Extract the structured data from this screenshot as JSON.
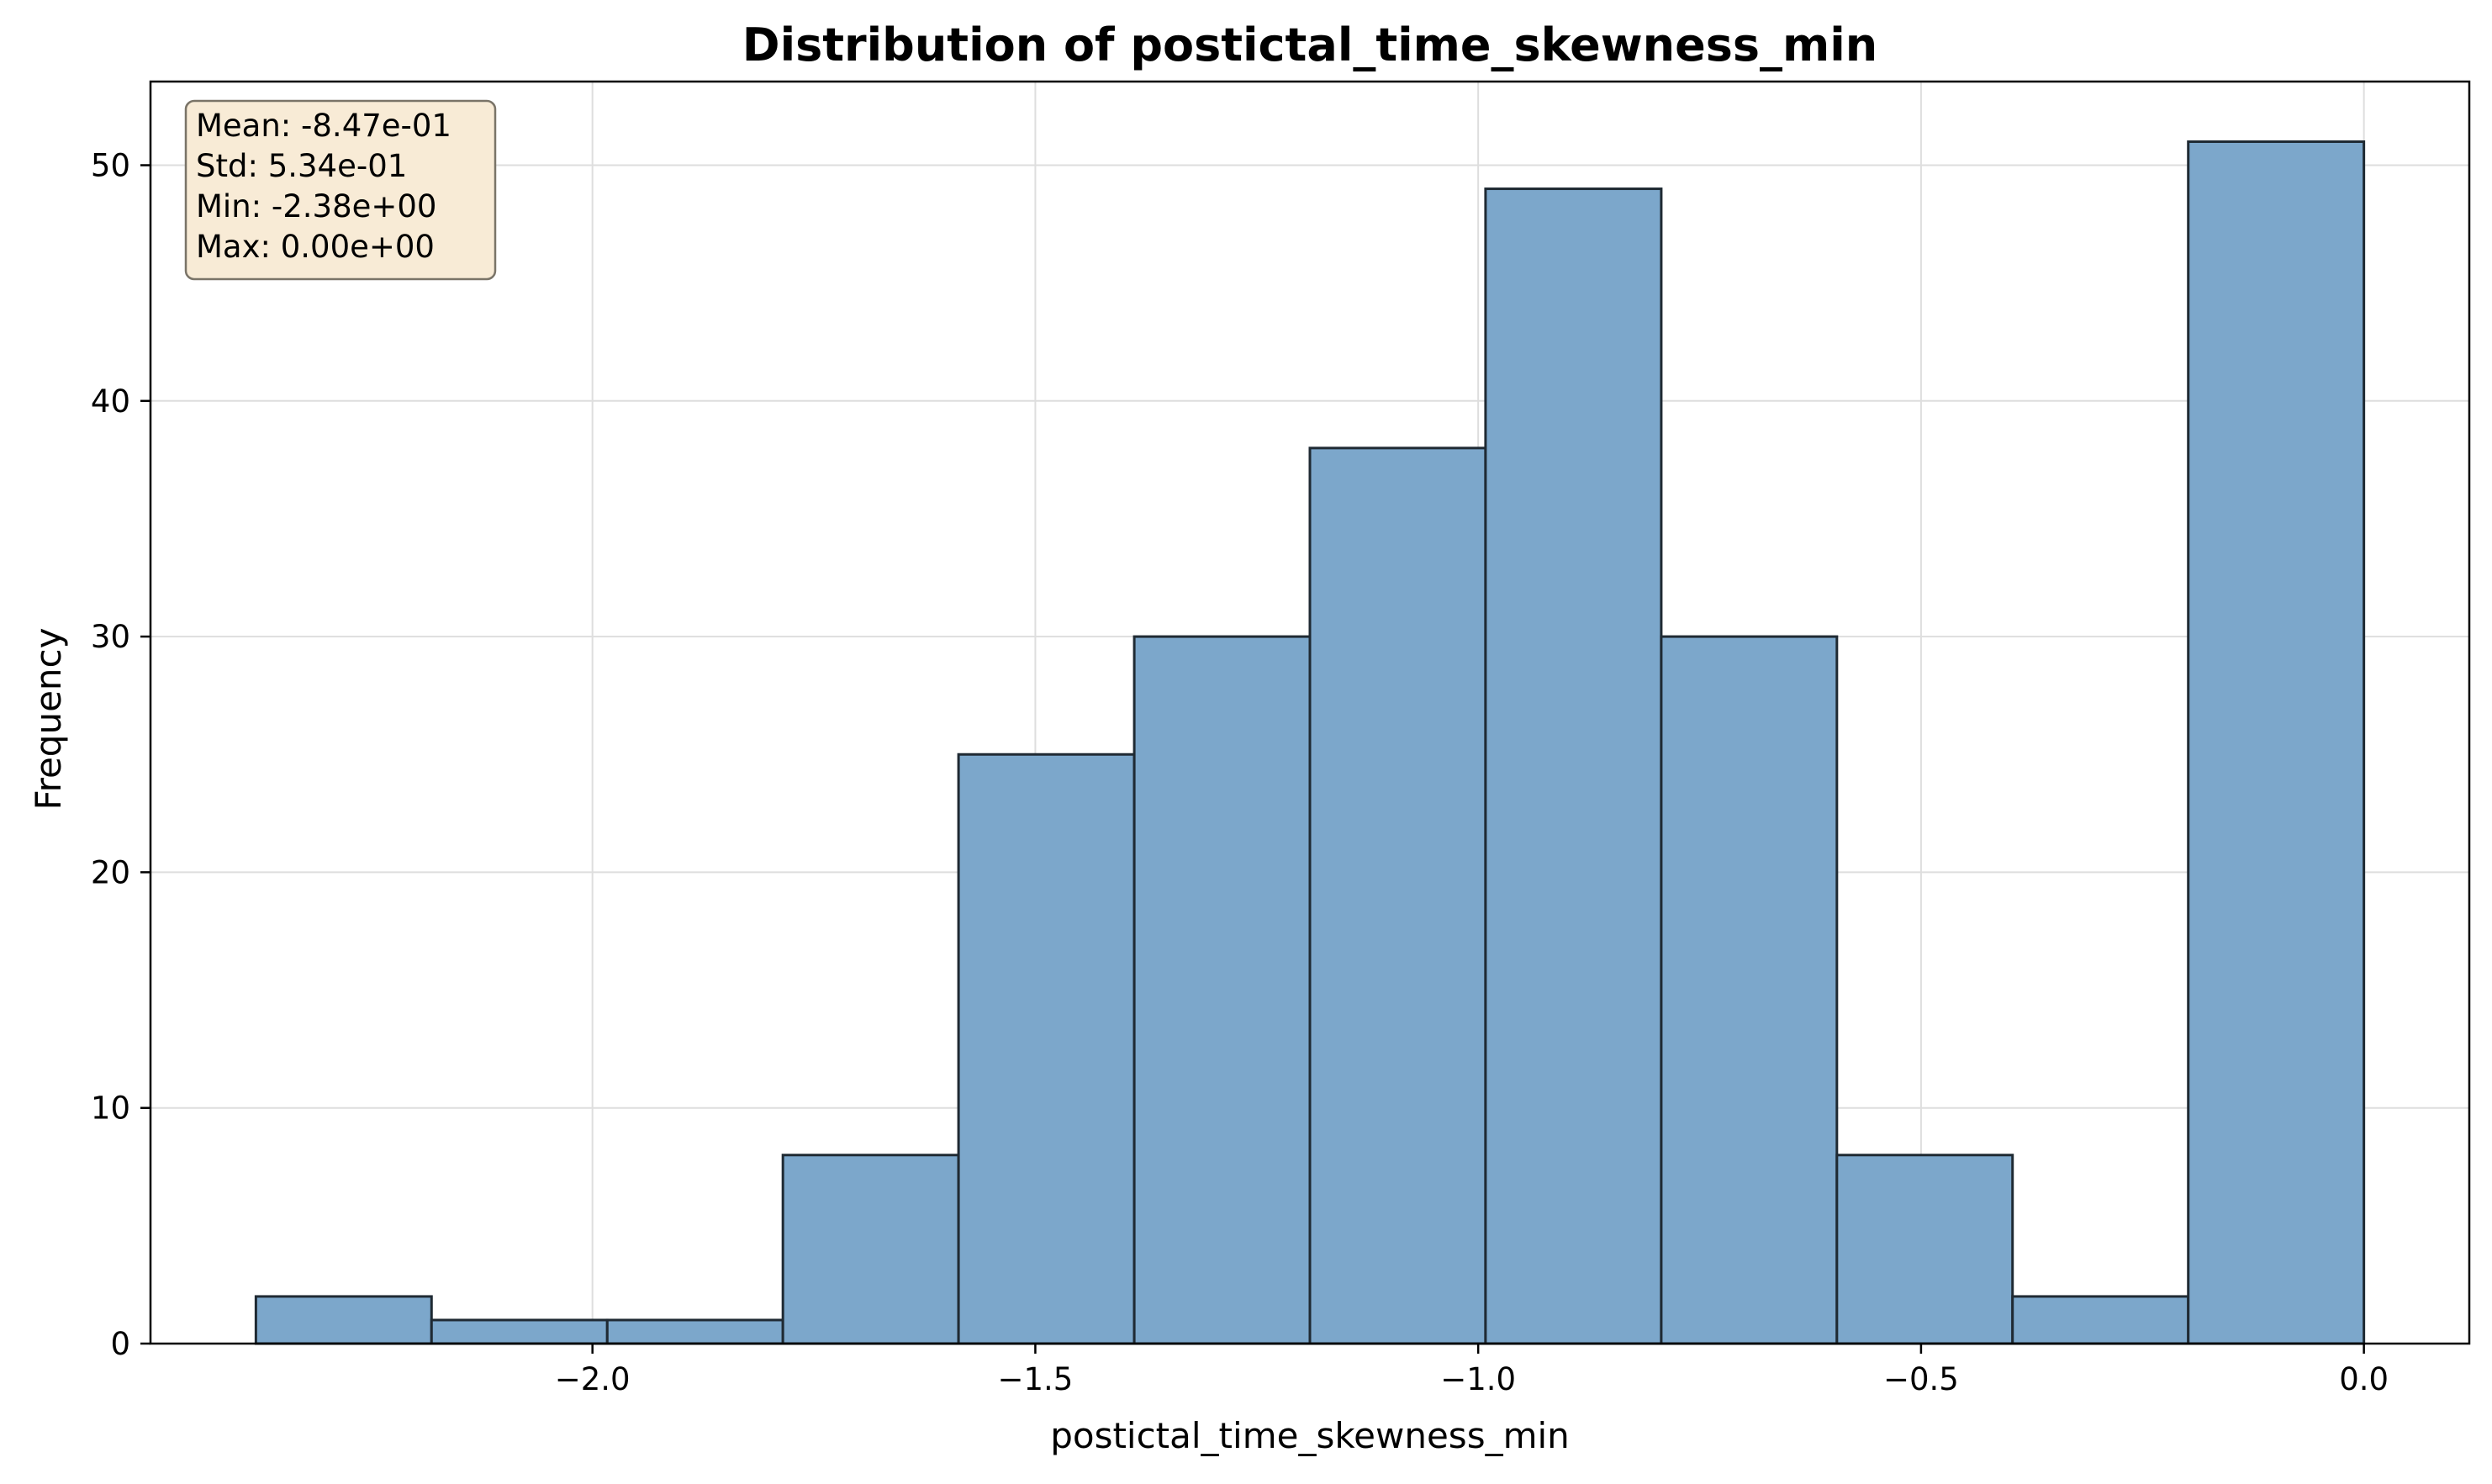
{
  "chart_data": {
    "type": "bar",
    "title": "Distribution of postictal_time_skewness_min",
    "xlabel": "postictal_time_skewness_min",
    "ylabel": "Frequency",
    "bin_edges": [
      -2.38,
      -2.1817,
      -1.9833,
      -1.785,
      -1.5867,
      -1.3883,
      -1.19,
      -0.9917,
      -0.7933,
      -0.595,
      -0.3967,
      -0.1983,
      0.0
    ],
    "values": [
      2,
      1,
      1,
      8,
      25,
      30,
      38,
      49,
      30,
      8,
      2,
      51
    ],
    "xlim": [
      -2.499,
      0.119
    ],
    "ylim": [
      0,
      53.55
    ],
    "xticks": [
      -2.0,
      -1.5,
      -1.0,
      -0.5,
      0.0
    ],
    "xtick_labels": [
      "−2.0",
      "−1.5",
      "−1.0",
      "−0.5",
      "0.0"
    ],
    "yticks": [
      0,
      10,
      20,
      30,
      40,
      50
    ],
    "ytick_labels": [
      "0",
      "10",
      "20",
      "30",
      "40",
      "50"
    ],
    "grid": true,
    "bar_color": "#7ca7cb",
    "edge_color": "#1f2a33",
    "stats_box": {
      "lines": [
        "Mean: -8.47e-01",
        "Std: 5.34e-01",
        "Min: -2.38e+00",
        "Max: 0.00e+00"
      ],
      "background": "#f8ebd6",
      "border": "#7a7468",
      "placement": "top-left"
    }
  }
}
